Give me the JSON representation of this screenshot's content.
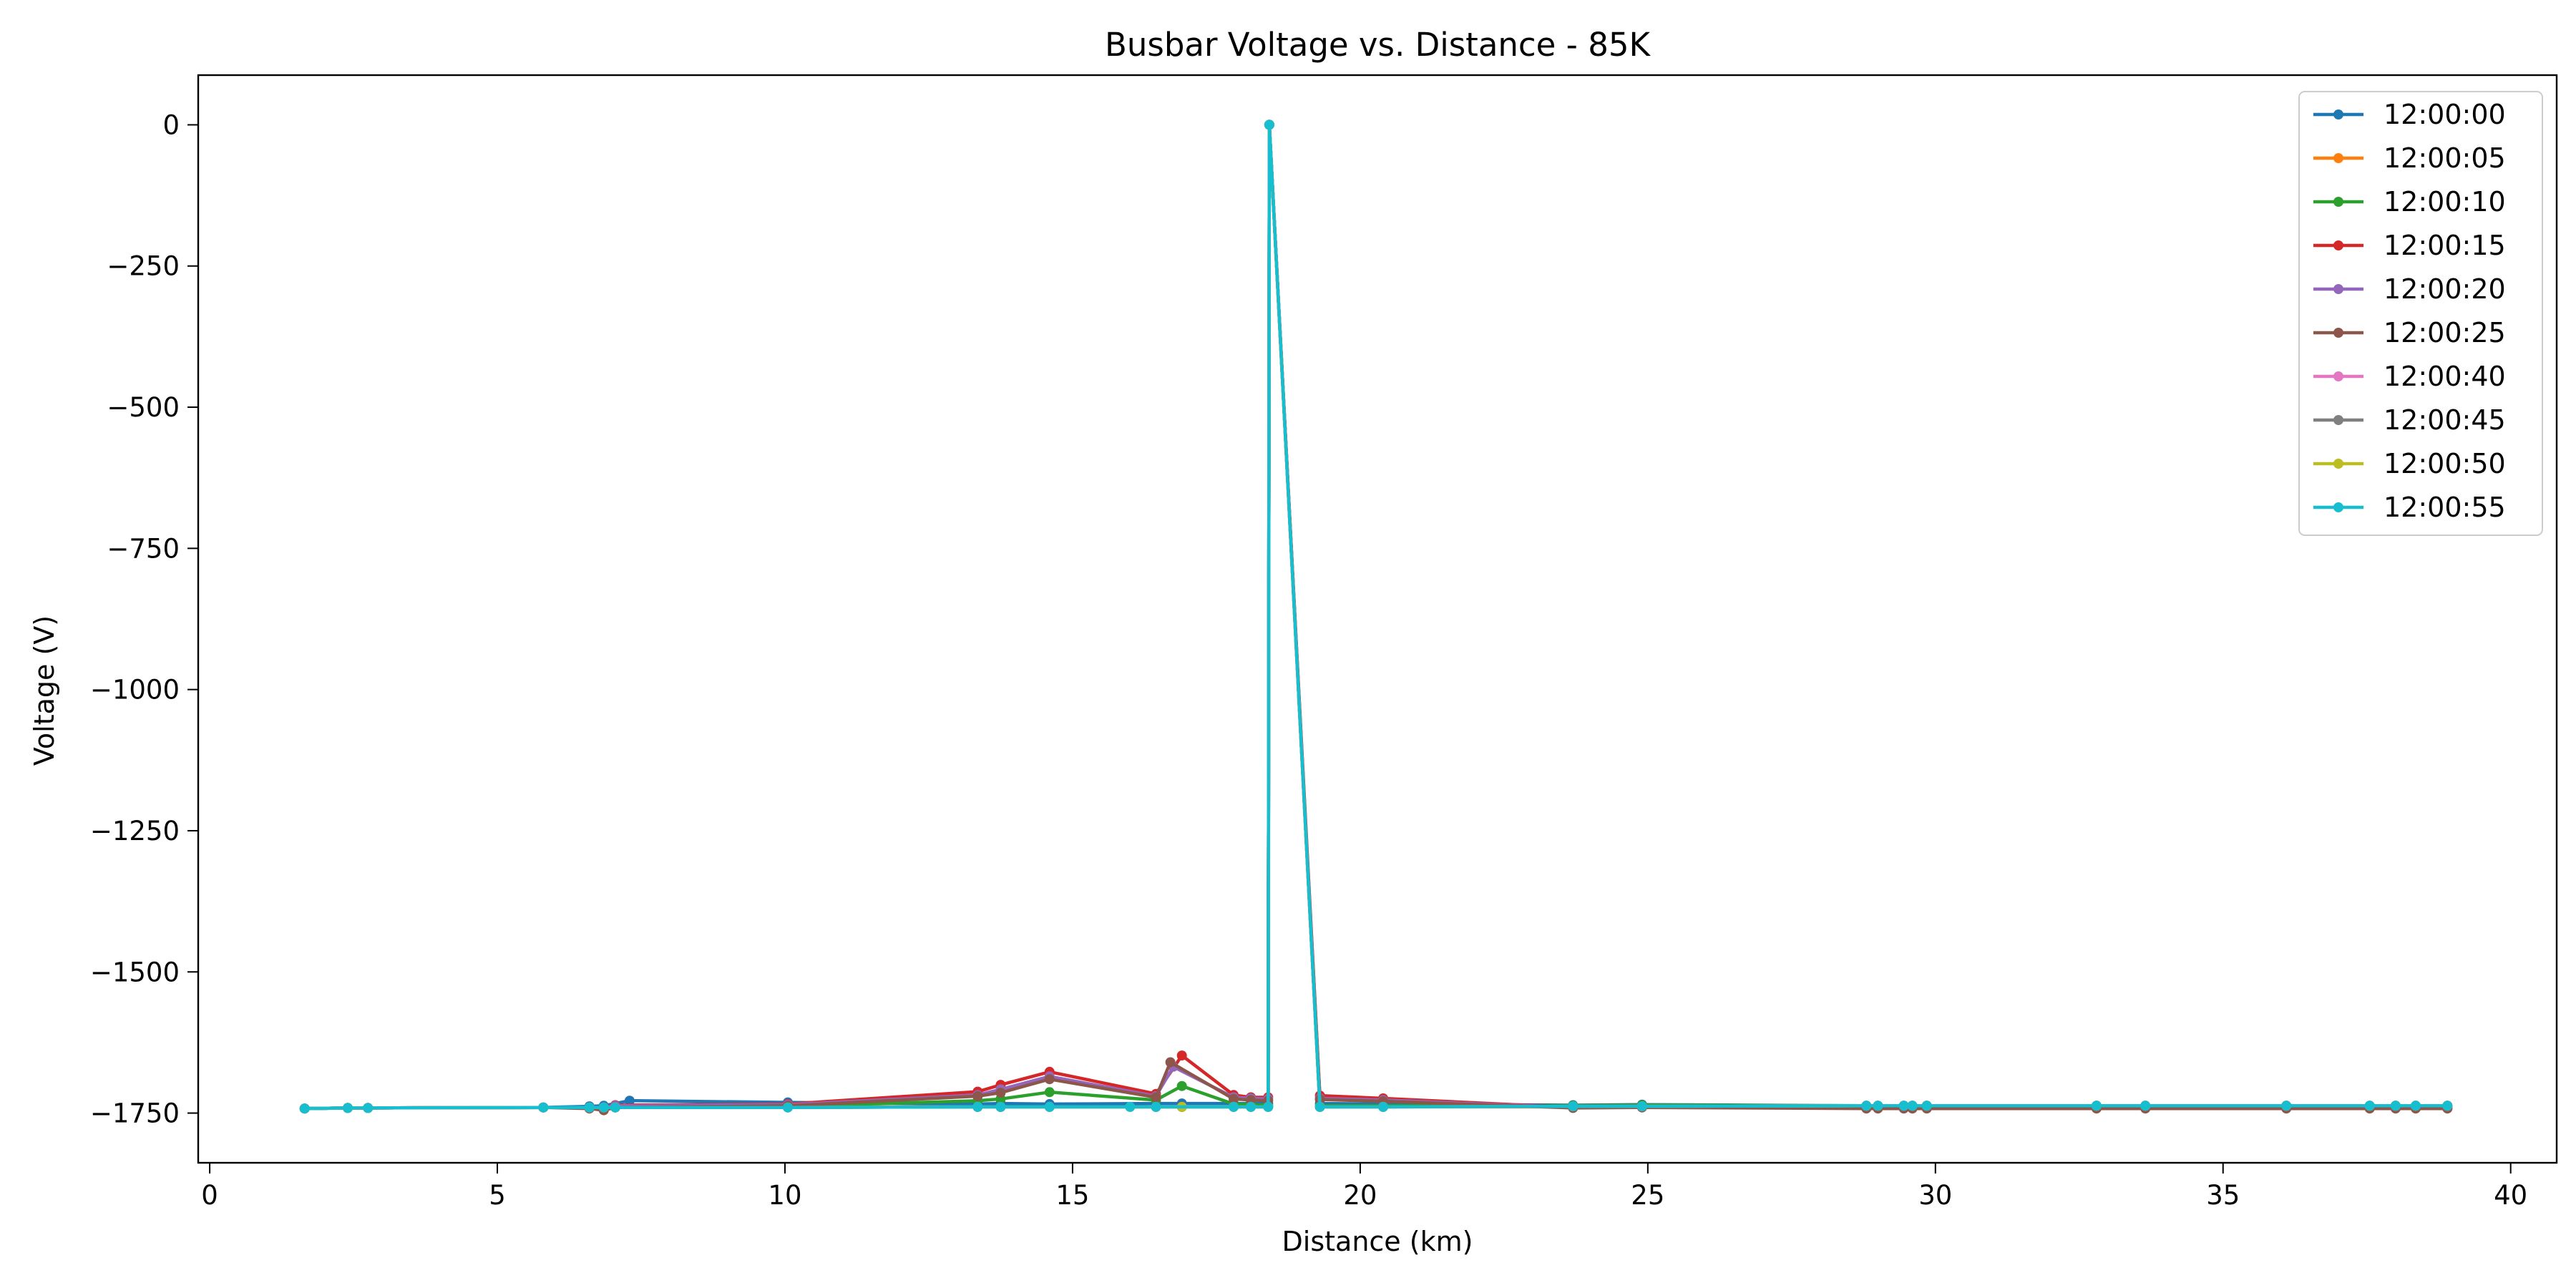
{
  "chart_data": {
    "type": "line",
    "title": "Busbar Voltage vs. Distance - 85K",
    "xlabel": "Distance (km)",
    "ylabel": "Voltage (V)",
    "xlim": [
      -0.2,
      40.8
    ],
    "ylim": [
      -1838,
      88
    ],
    "xticks": [
      0,
      5,
      10,
      15,
      20,
      25,
      30,
      35,
      40
    ],
    "yticks": [
      0,
      -250,
      -500,
      -750,
      -1000,
      -1250,
      -1500,
      -1750
    ],
    "xtick_labels": [
      "0",
      "5",
      "10",
      "15",
      "20",
      "25",
      "30",
      "35",
      "40"
    ],
    "ytick_labels": [
      "0",
      "−250",
      "−500",
      "−750",
      "−1000",
      "−1250",
      "−1500",
      "−1750"
    ],
    "grid": false,
    "legend_position": "top-right",
    "series": [
      {
        "name": "12:00:00",
        "color": "#1f77b4",
        "x": [
          1.65,
          2.4,
          2.75,
          5.8,
          6.6,
          6.85,
          7.3,
          10.05,
          13.35,
          13.75,
          14.6,
          16.45,
          16.9,
          17.8,
          18.1,
          18.4,
          18.42,
          19.3,
          20.4,
          23.7,
          24.9,
          28.8,
          29.0,
          29.45,
          29.6,
          29.85,
          32.8,
          33.65,
          36.1,
          37.55,
          38.0,
          38.35,
          38.9
        ],
        "y": [
          -1742,
          -1741,
          -1741,
          -1740,
          -1738,
          -1737,
          -1728,
          -1731,
          -1734,
          -1733,
          -1734,
          -1733,
          -1733,
          -1733,
          -1733,
          -1733,
          0,
          -1733,
          -1734,
          -1736,
          -1735,
          -1737,
          -1737,
          -1737,
          -1737,
          -1737,
          -1737,
          -1737,
          -1737,
          -1737,
          -1737,
          -1737,
          -1737
        ]
      },
      {
        "name": "12:00:05",
        "color": "#ff7f0e",
        "x": [
          1.65,
          2.4,
          2.75,
          5.8,
          6.6,
          6.85,
          7.05,
          10.05,
          13.35,
          13.75,
          14.6,
          16.45,
          16.9,
          17.8,
          18.1,
          18.4,
          18.42,
          19.3,
          20.4,
          23.7,
          24.9,
          28.8,
          29.0,
          29.45,
          29.6,
          29.85,
          32.8,
          33.65,
          36.1,
          37.55,
          38.0,
          38.35,
          38.9
        ],
        "y": [
          -1742,
          -1741,
          -1741,
          -1740,
          -1740,
          -1740,
          -1740,
          -1739,
          -1739,
          -1739,
          -1739,
          -1739,
          -1739,
          -1739,
          -1739,
          -1739,
          0,
          -1739,
          -1739,
          -1739,
          -1739,
          -1738,
          -1738,
          -1738,
          -1738,
          -1738,
          -1738,
          -1738,
          -1738,
          -1738,
          -1738,
          -1738,
          -1738
        ]
      },
      {
        "name": "12:00:10",
        "color": "#2ca02c",
        "x": [
          1.65,
          2.4,
          2.75,
          5.8,
          6.6,
          6.85,
          7.05,
          10.05,
          13.35,
          13.75,
          14.6,
          16.45,
          16.9,
          17.8,
          18.1,
          18.4,
          18.42,
          19.3,
          20.4,
          23.7,
          24.9,
          28.8,
          29.0,
          29.45,
          29.6,
          29.85,
          32.8,
          33.65,
          36.1,
          37.55,
          38.0,
          38.35,
          38.9
        ],
        "y": [
          -1742,
          -1741,
          -1741,
          -1740,
          -1740,
          -1740,
          -1739,
          -1738,
          -1728,
          -1725,
          -1713,
          -1727,
          -1702,
          -1734,
          -1735,
          -1736,
          0,
          -1737,
          -1737,
          -1737,
          -1736,
          -1737,
          -1737,
          -1737,
          -1737,
          -1737,
          -1737,
          -1737,
          -1737,
          -1737,
          -1737,
          -1737,
          -1737
        ]
      },
      {
        "name": "12:00:15",
        "color": "#d62728",
        "x": [
          1.65,
          2.4,
          2.75,
          5.8,
          6.6,
          6.85,
          7.05,
          10.05,
          13.35,
          13.75,
          14.6,
          16.45,
          16.9,
          17.8,
          18.1,
          18.4,
          18.42,
          19.3,
          20.4,
          23.7,
          24.9,
          28.8,
          29.0,
          29.45,
          29.6,
          29.85,
          32.8,
          33.65,
          36.1,
          37.55,
          38.0,
          38.35,
          38.9
        ],
        "y": [
          -1742,
          -1741,
          -1741,
          -1740,
          -1740,
          -1740,
          -1736,
          -1734,
          -1712,
          -1700,
          -1677,
          -1716,
          -1648,
          -1718,
          -1722,
          -1722,
          0,
          -1719,
          -1724,
          -1740,
          -1739,
          -1741,
          -1741,
          -1741,
          -1741,
          -1741,
          -1741,
          -1741,
          -1741,
          -1741,
          -1741,
          -1741,
          -1741
        ]
      },
      {
        "name": "12:00:20",
        "color": "#9467bd",
        "x": [
          1.65,
          2.4,
          2.75,
          5.8,
          6.6,
          6.85,
          7.05,
          10.05,
          13.35,
          13.75,
          14.6,
          16.45,
          16.75,
          17.8,
          18.1,
          18.4,
          18.42,
          19.3,
          20.4,
          23.7,
          24.9,
          28.8,
          29.0,
          29.45,
          29.6,
          29.85,
          32.8,
          33.65,
          36.1,
          37.55,
          38.0,
          38.35,
          38.9
        ],
        "y": [
          -1742,
          -1741,
          -1741,
          -1740,
          -1740,
          -1740,
          -1737,
          -1735,
          -1718,
          -1708,
          -1685,
          -1720,
          -1668,
          -1722,
          -1724,
          -1725,
          0,
          -1724,
          -1727,
          -1740,
          -1739,
          -1741,
          -1741,
          -1741,
          -1741,
          -1741,
          -1741,
          -1741,
          -1741,
          -1741,
          -1741,
          -1741,
          -1741
        ]
      },
      {
        "name": "12:00:25",
        "color": "#8c564b",
        "x": [
          1.65,
          2.4,
          2.75,
          5.8,
          6.6,
          6.85,
          7.05,
          10.05,
          13.35,
          13.75,
          14.6,
          16.45,
          16.7,
          17.8,
          18.1,
          18.4,
          18.42,
          19.3,
          20.4,
          23.7,
          24.9,
          28.8,
          29.0,
          29.45,
          29.6,
          29.85,
          32.8,
          33.65,
          36.1,
          37.55,
          38.0,
          38.35,
          38.9
        ],
        "y": [
          -1742,
          -1741,
          -1741,
          -1740,
          -1742,
          -1745,
          -1740,
          -1737,
          -1720,
          -1714,
          -1690,
          -1722,
          -1660,
          -1725,
          -1727,
          -1728,
          0,
          -1726,
          -1729,
          -1741,
          -1740,
          -1742,
          -1742,
          -1742,
          -1742,
          -1742,
          -1742,
          -1742,
          -1742,
          -1742,
          -1742,
          -1742,
          -1742
        ]
      },
      {
        "name": "12:00:40",
        "color": "#e377c2",
        "x": [
          1.65,
          2.4,
          2.75,
          5.8,
          6.6,
          6.85,
          7.05,
          10.05,
          13.35,
          13.75,
          14.6,
          16.45,
          16.9,
          17.8,
          18.1,
          18.4,
          18.42,
          19.3,
          20.4,
          23.7,
          24.9,
          28.8,
          29.0,
          29.45,
          29.6,
          29.85,
          32.8,
          33.65,
          36.1,
          37.55,
          38.0,
          38.35,
          38.9
        ],
        "y": [
          -1742,
          -1741,
          -1741,
          -1740,
          -1740,
          -1740,
          -1740,
          -1740,
          -1739,
          -1739,
          -1739,
          -1739,
          -1739,
          -1739,
          -1739,
          -1739,
          0,
          -1739,
          -1739,
          -1738,
          -1738,
          -1737,
          -1737,
          -1737,
          -1737,
          -1737,
          -1737,
          -1737,
          -1737,
          -1737,
          -1737,
          -1737,
          -1737
        ]
      },
      {
        "name": "12:00:45",
        "color": "#7f7f7f",
        "x": [
          1.65,
          2.4,
          2.75,
          5.8,
          6.6,
          6.85,
          7.05,
          10.05,
          13.35,
          13.75,
          14.6,
          16.45,
          16.9,
          17.8,
          18.1,
          18.4,
          18.42,
          19.3,
          20.4,
          23.7,
          24.9,
          28.8,
          29.0,
          29.45,
          29.6,
          29.85,
          32.8,
          33.65,
          36.1,
          37.55,
          38.0,
          38.35,
          38.9
        ],
        "y": [
          -1742,
          -1741,
          -1741,
          -1740,
          -1740,
          -1740,
          -1740,
          -1740,
          -1739,
          -1739,
          -1739,
          -1739,
          -1739,
          -1739,
          -1739,
          -1739,
          0,
          -1739,
          -1739,
          -1738,
          -1738,
          -1737,
          -1737,
          -1737,
          -1737,
          -1737,
          -1737,
          -1737,
          -1737,
          -1737,
          -1737,
          -1737,
          -1737
        ]
      },
      {
        "name": "12:00:50",
        "color": "#bcbd22",
        "x": [
          1.65,
          2.4,
          2.75,
          5.8,
          6.6,
          6.85,
          7.05,
          10.05,
          13.35,
          13.75,
          14.6,
          16.0,
          16.9,
          17.8,
          18.1,
          18.4,
          18.42,
          19.3,
          20.4,
          23.7,
          24.9,
          28.8,
          29.0,
          29.45,
          29.6,
          29.85,
          32.8,
          33.65,
          36.1,
          37.55,
          38.0,
          38.35,
          38.9
        ],
        "y": [
          -1742,
          -1741,
          -1741,
          -1740,
          -1740,
          -1740,
          -1740,
          -1740,
          -1739,
          -1739,
          -1739,
          -1739,
          -1739,
          -1739,
          -1739,
          -1739,
          0,
          -1739,
          -1739,
          -1738,
          -1738,
          -1737,
          -1737,
          -1737,
          -1737,
          -1737,
          -1737,
          -1737,
          -1737,
          -1737,
          -1737,
          -1737,
          -1737
        ]
      },
      {
        "name": "12:00:55",
        "color": "#17becf",
        "x": [
          1.65,
          2.4,
          2.75,
          5.8,
          6.6,
          6.85,
          7.05,
          10.05,
          13.35,
          13.75,
          14.6,
          16.0,
          16.45,
          17.8,
          18.1,
          18.4,
          18.42,
          19.3,
          20.4,
          23.7,
          24.9,
          28.8,
          29.0,
          29.45,
          29.6,
          29.85,
          32.8,
          33.65,
          36.1,
          37.55,
          38.0,
          38.35,
          38.9
        ],
        "y": [
          -1742,
          -1741,
          -1741,
          -1740,
          -1740,
          -1740,
          -1740,
          -1740,
          -1739,
          -1739,
          -1739,
          -1739,
          -1739,
          -1739,
          -1739,
          -1739,
          0,
          -1739,
          -1739,
          -1738,
          -1738,
          -1737,
          -1737,
          -1737,
          -1737,
          -1737,
          -1737,
          -1737,
          -1737,
          -1737,
          -1737,
          -1737,
          -1737
        ]
      }
    ]
  }
}
